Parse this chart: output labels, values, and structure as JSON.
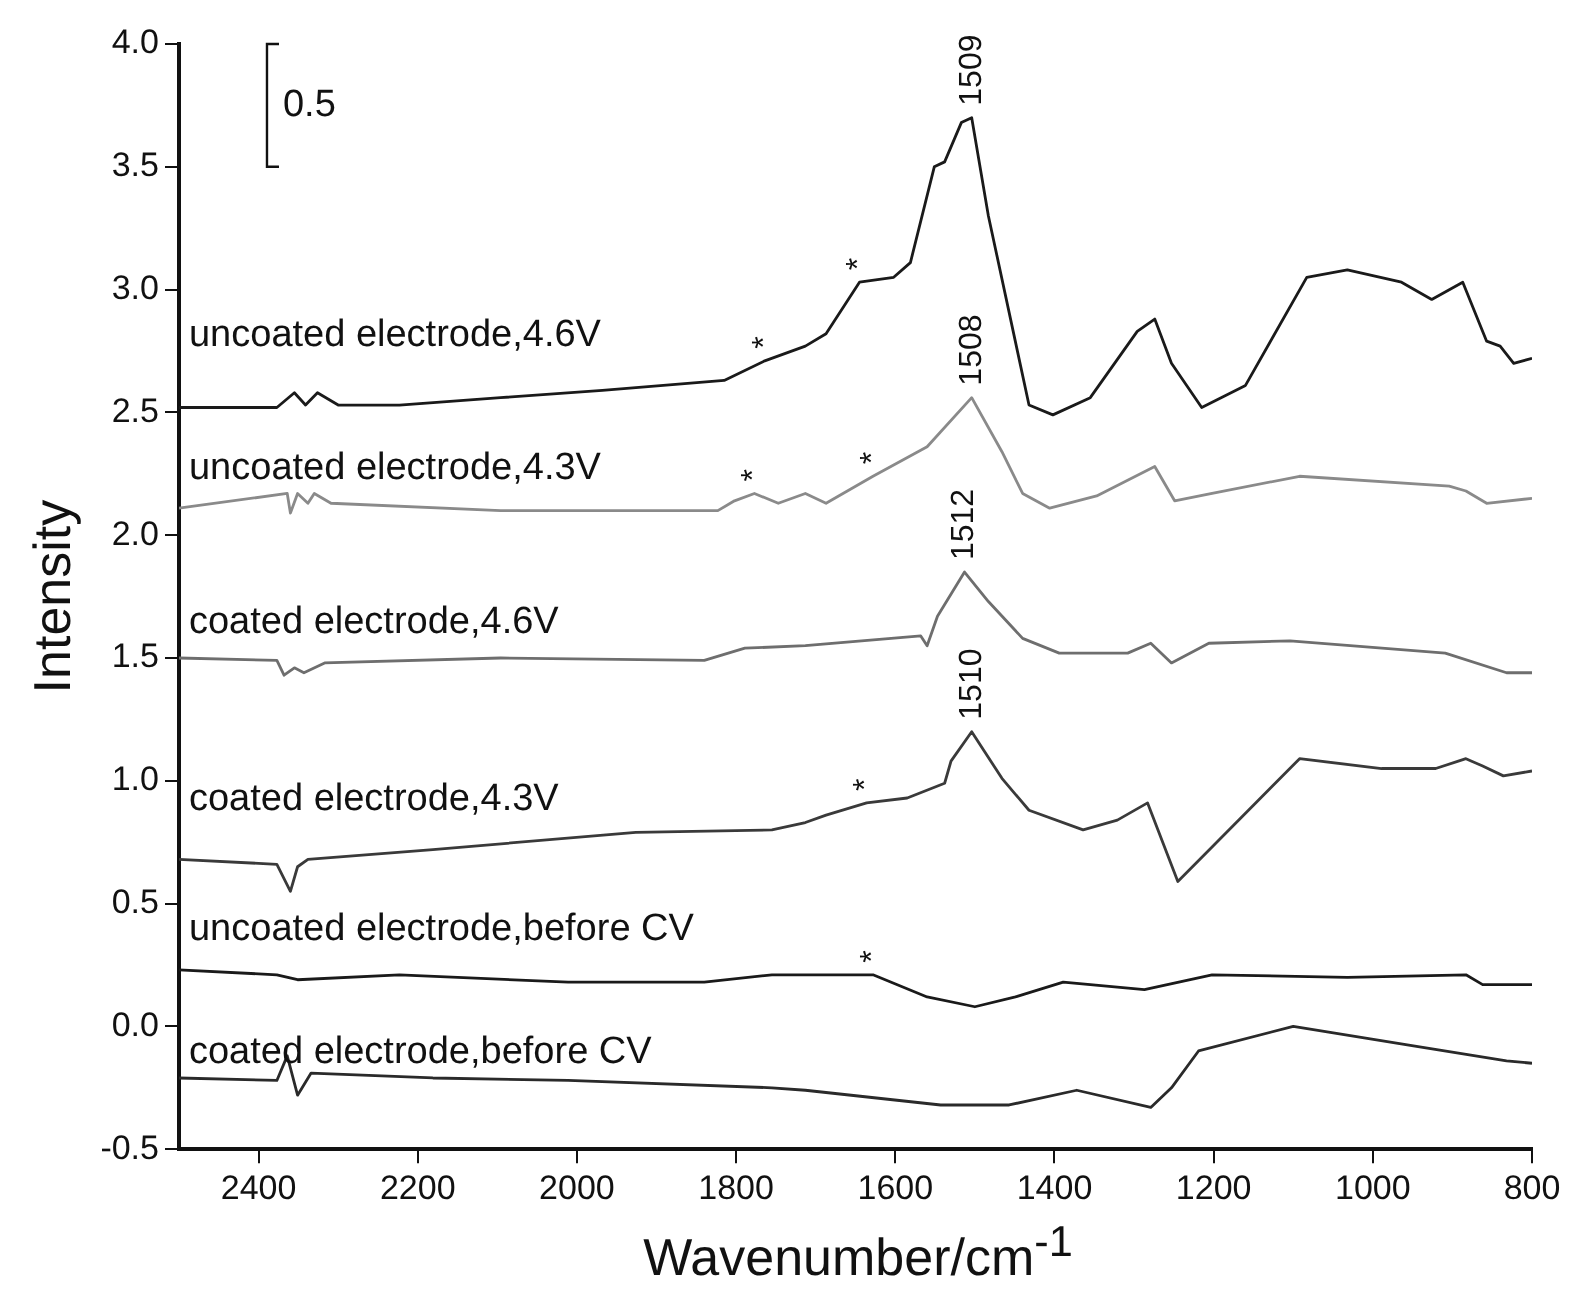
{
  "chart_data": {
    "type": "line",
    "xlabel": "Wavenumber/cm$^{-1}$",
    "ylabel": "Intensity",
    "xlim": [
      2500,
      800
    ],
    "xticks": [
      2400,
      2200,
      2000,
      1800,
      1600,
      1400,
      1200,
      1000,
      800
    ],
    "ylim": [
      -0.5,
      4.0
    ],
    "yticks": [
      -0.5,
      {
        "value": 0,
        "label": "0.0"
      },
      0.5,
      {
        "value": 1,
        "label": "1.0"
      },
      1.5,
      {
        "value": 2,
        "label": "2.0"
      },
      2.5,
      {
        "value": 3,
        "label": "3.0"
      },
      3.5,
      {
        "value": 4,
        "label": "4.0"
      }
    ],
    "grid": false,
    "legend": false,
    "marker": "none",
    "line_style": "solid",
    "series": [
      {
        "name": "uncoated electrode,4.6V",
        "color": "#1a1a1a",
        "x": [
          2500,
          2377,
          2355,
          2341,
          2326,
          2300,
          2223,
          2096,
          1968,
          1815,
          1764,
          1713,
          1687,
          1645,
          1602,
          1581,
          1551,
          1538,
          1517,
          1504,
          1483,
          1432,
          1402,
          1355,
          1296,
          1274,
          1253,
          1215,
          1160,
          1083,
          1032,
          964,
          926,
          887,
          857,
          840,
          823,
          800
        ],
        "values": [
          2.52,
          2.52,
          2.58,
          2.53,
          2.58,
          2.53,
          2.53,
          2.56,
          2.59,
          2.63,
          2.71,
          2.77,
          2.82,
          3.03,
          3.05,
          3.11,
          3.5,
          3.52,
          3.68,
          3.7,
          3.3,
          2.53,
          2.49,
          2.56,
          2.83,
          2.88,
          2.7,
          2.52,
          2.61,
          3.05,
          3.08,
          3.03,
          2.96,
          3.03,
          2.79,
          2.77,
          2.7,
          2.72
        ]
      },
      {
        "name": "uncoated electrode,4.3V",
        "color": "#8a8a8a",
        "x": [
          2500,
          2364,
          2360,
          2351,
          2338,
          2330,
          2309,
          2096,
          1823,
          1802,
          1777,
          1747,
          1713,
          1687,
          1628,
          1560,
          1504,
          1466,
          1440,
          1406,
          1347,
          1274,
          1249,
          1202,
          1092,
          904,
          883,
          857,
          800
        ],
        "values": [
          2.11,
          2.17,
          2.09,
          2.17,
          2.13,
          2.17,
          2.13,
          2.1,
          2.1,
          2.14,
          2.17,
          2.13,
          2.17,
          2.13,
          2.24,
          2.36,
          2.56,
          2.34,
          2.17,
          2.11,
          2.16,
          2.28,
          2.14,
          2.17,
          2.24,
          2.2,
          2.18,
          2.13,
          2.15
        ]
      },
      {
        "name": "coated electrode,4.6V",
        "color": "#6e6e6e",
        "x": [
          2500,
          2377,
          2368,
          2355,
          2343,
          2317,
          2096,
          1840,
          1789,
          1713,
          1568,
          1560,
          1547,
          1513,
          1483,
          1440,
          1394,
          1308,
          1279,
          1253,
          1206,
          1104,
          909,
          832,
          800
        ],
        "values": [
          1.5,
          1.49,
          1.43,
          1.46,
          1.44,
          1.48,
          1.5,
          1.49,
          1.54,
          1.55,
          1.59,
          1.55,
          1.67,
          1.85,
          1.73,
          1.58,
          1.52,
          1.52,
          1.56,
          1.48,
          1.56,
          1.57,
          1.52,
          1.44,
          1.44
        ]
      },
      {
        "name": "coated electrode,4.3V",
        "color": "#3a3a3a",
        "x": [
          2500,
          2377,
          2360,
          2351,
          2338,
          2181,
          1926,
          1755,
          1713,
          1687,
          1636,
          1585,
          1538,
          1530,
          1504,
          1466,
          1432,
          1364,
          1321,
          1283,
          1245,
          1202,
          1092,
          989,
          921,
          883,
          862,
          836,
          800
        ],
        "values": [
          0.68,
          0.66,
          0.55,
          0.65,
          0.68,
          0.72,
          0.79,
          0.8,
          0.83,
          0.86,
          0.91,
          0.93,
          0.99,
          1.08,
          1.2,
          1.01,
          0.88,
          0.8,
          0.84,
          0.91,
          0.59,
          0.73,
          1.09,
          1.05,
          1.05,
          1.09,
          1.06,
          1.02,
          1.04
        ]
      },
      {
        "name": "uncoated electrode,before CV",
        "color": "#1a1a1a",
        "x": [
          2500,
          2377,
          2351,
          2223,
          2011,
          1840,
          1755,
          1713,
          1628,
          1560,
          1500,
          1449,
          1389,
          1287,
          1202,
          1032,
          883,
          862,
          800
        ],
        "values": [
          0.23,
          0.21,
          0.19,
          0.21,
          0.18,
          0.18,
          0.21,
          0.21,
          0.21,
          0.12,
          0.08,
          0.12,
          0.18,
          0.15,
          0.21,
          0.2,
          0.21,
          0.17,
          0.17
        ]
      },
      {
        "name": "coated electrode,before CV",
        "color": "#2a2a2a",
        "x": [
          2500,
          2377,
          2364,
          2351,
          2334,
          2181,
          2011,
          1755,
          1713,
          1543,
          1457,
          1372,
          1279,
          1253,
          1219,
          1100,
          947,
          832,
          800
        ],
        "values": [
          -0.21,
          -0.22,
          -0.12,
          -0.28,
          -0.19,
          -0.21,
          -0.22,
          -0.25,
          -0.26,
          -0.32,
          -0.32,
          -0.26,
          -0.33,
          -0.25,
          -0.1,
          0.0,
          -0.08,
          -0.14,
          -0.15
        ]
      }
    ],
    "annotations": [
      {
        "text": "1509",
        "x": 1504,
        "y": 3.7
      },
      {
        "text": "1508",
        "x": 1504,
        "y": 2.56
      },
      {
        "text": "1512",
        "x": 1513,
        "y": 1.85
      },
      {
        "text": "1510",
        "x": 1504,
        "y": 1.2
      },
      {
        "text": "*",
        "x": 1764,
        "y": 2.71
      },
      {
        "text": "*",
        "x": 1645,
        "y": 3.03
      },
      {
        "text": "*",
        "x": 1777,
        "y": 2.17
      },
      {
        "text": "*",
        "x": 1628,
        "y": 2.24
      },
      {
        "text": "*",
        "x": 1636,
        "y": 0.91
      },
      {
        "text": "*",
        "x": 1628,
        "y": 0.21
      },
      "0.5"
    ]
  }
}
